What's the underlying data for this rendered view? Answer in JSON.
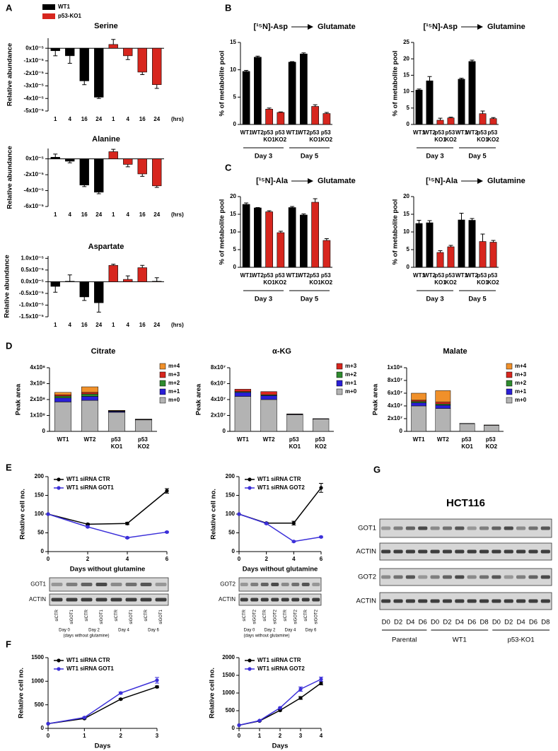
{
  "panel_labels": [
    "A",
    "B",
    "C",
    "D",
    "E",
    "F",
    "G"
  ],
  "chart_data": [
    {
      "type": "bar",
      "title": "Serine",
      "ylabel": "Relative abundance",
      "xlabel": "(hrs)",
      "categories": [
        "1",
        "4",
        "16",
        "24",
        "1",
        "4",
        "16",
        "24"
      ],
      "series": [
        {
          "name": "WT1",
          "color": "#000000",
          "values": [
            -2e-06,
            -6e-06,
            -2.6e-05,
            -3.9e-05,
            null,
            null,
            null,
            null
          ],
          "errors": [
            4e-06,
            6e-06,
            3e-06,
            1e-06,
            null,
            null,
            null,
            null
          ]
        },
        {
          "name": "p53-KO1",
          "color": "#d7261e",
          "values": [
            null,
            null,
            null,
            null,
            3e-06,
            -6e-06,
            -1.9e-05,
            -2.9e-05
          ],
          "errors": [
            null,
            null,
            null,
            null,
            4e-06,
            3e-06,
            2e-06,
            3e-06
          ]
        }
      ],
      "ylim": [
        -5e-05,
        8e-06
      ],
      "yticks": [
        {
          "value": 0,
          "label": "0x10⁻⁵"
        },
        {
          "value": -1e-05,
          "label": "-1x10⁻⁵"
        },
        {
          "value": -2e-05,
          "label": "-2x10⁻⁵"
        },
        {
          "value": -3e-05,
          "label": "-3x10⁻⁵"
        },
        {
          "value": -4e-05,
          "label": "-4x10⁻⁵"
        },
        {
          "value": -5e-05,
          "label": "-5x10⁻⁵"
        }
      ]
    },
    {
      "type": "bar",
      "title": "Alanine",
      "ylabel": "Relative abundance",
      "xlabel": "(hrs)",
      "categories": [
        "1",
        "4",
        "16",
        "24",
        "1",
        "4",
        "16",
        "24"
      ],
      "series": [
        {
          "name": "WT1",
          "color": "#000000",
          "values": [
            2e-06,
            -3e-06,
            -3.3e-05,
            -4.2e-05,
            null,
            null,
            null,
            null
          ],
          "errors": [
            4e-06,
            2e-06,
            2e-06,
            2e-06,
            null,
            null,
            null,
            null
          ]
        },
        {
          "name": "p53-KO1",
          "color": "#d7261e",
          "values": [
            null,
            null,
            null,
            null,
            9e-06,
            -7e-06,
            -1.9e-05,
            -3.4e-05
          ],
          "errors": [
            null,
            null,
            null,
            null,
            3e-06,
            3e-06,
            3e-06,
            2e-06
          ]
        }
      ],
      "ylim": [
        -6e-05,
        1.3e-05
      ],
      "yticks": [
        {
          "value": 0,
          "label": "0x10⁻⁵"
        },
        {
          "value": -2e-05,
          "label": "-2x10⁻⁵"
        },
        {
          "value": -4e-05,
          "label": "-4x10⁻⁵"
        },
        {
          "value": -6e-05,
          "label": "-6x10⁻⁵"
        }
      ]
    },
    {
      "type": "bar",
      "title": "Aspartate",
      "ylabel": "Relative abundance",
      "xlabel": "(hrs)",
      "categories": [
        "1",
        "4",
        "16",
        "24",
        "1",
        "4",
        "16",
        "24"
      ],
      "series": [
        {
          "name": "WT1",
          "color": "#000000",
          "values": [
            -2e-06,
            2e-07,
            -6.5e-06,
            -9e-06,
            null,
            null,
            null,
            null
          ],
          "errors": [
            2.5e-06,
            2.7e-06,
            1.5e-06,
            4e-06,
            null,
            null,
            null,
            null
          ]
        },
        {
          "name": "p53-KO1",
          "color": "#d7261e",
          "values": [
            null,
            null,
            null,
            null,
            7e-06,
            1e-06,
            6e-06,
            2e-07
          ],
          "errors": [
            null,
            null,
            null,
            null,
            5e-07,
            1.5e-06,
            1e-06,
            1.5e-06
          ]
        }
      ],
      "ylim": [
        -1.5e-05,
        1.1e-05
      ],
      "yticks": [
        {
          "value": 1e-05,
          "label": "1.0x10⁻⁵"
        },
        {
          "value": 5e-06,
          "label": "0.5x10⁻⁵"
        },
        {
          "value": 0,
          "label": "0.0x10⁻⁵"
        },
        {
          "value": -5e-06,
          "label": "-0.5x10⁻⁵"
        },
        {
          "value": -1e-05,
          "label": "-1.0x10⁻⁵"
        },
        {
          "value": -1.5e-05,
          "label": "-1.5x10⁻⁵"
        }
      ]
    },
    {
      "type": "bar",
      "title_from": "[¹⁵N]-Asp",
      "title_to": "Glutamate",
      "ylabel": "% of metabolite pool",
      "categories": [
        "WT1",
        "WT2",
        "p53 KO1",
        "p53 KO2",
        "WT1",
        "WT2",
        "p53 KO1",
        "p53 KO2"
      ],
      "groups": [
        "Day 3",
        "Day 5"
      ],
      "values": [
        9.7,
        12.3,
        2.8,
        2.2,
        11.4,
        12.9,
        3.3,
        2.0
      ],
      "errors": [
        0.2,
        0.2,
        0.2,
        0.1,
        0.1,
        0.2,
        0.3,
        0.2
      ],
      "colors": [
        "#000000",
        "#000000",
        "#d7261e",
        "#d7261e",
        "#000000",
        "#000000",
        "#d7261e",
        "#d7261e"
      ],
      "ylim": [
        0,
        15
      ],
      "yticks": [
        0,
        5,
        10,
        15
      ]
    },
    {
      "type": "bar",
      "title_from": "[¹⁵N]-Asp",
      "title_to": "Glutamine",
      "ylabel": "% of metabolite pool",
      "categories": [
        "WT1",
        "WT2",
        "p53 KO1",
        "p53 KO2",
        "WT1",
        "WT2",
        "p53 KO1",
        "p53 KO2"
      ],
      "groups": [
        "Day 3",
        "Day 5"
      ],
      "values": [
        10.5,
        13.3,
        1.3,
        2.0,
        13.8,
        19.2,
        3.3,
        1.8
      ],
      "errors": [
        0.3,
        1.3,
        0.6,
        0.2,
        0.3,
        0.4,
        0.8,
        0.3
      ],
      "colors": [
        "#000000",
        "#000000",
        "#d7261e",
        "#d7261e",
        "#000000",
        "#000000",
        "#d7261e",
        "#d7261e"
      ],
      "ylim": [
        0,
        25
      ],
      "yticks": [
        0,
        5,
        10,
        15,
        20,
        25
      ]
    },
    {
      "type": "bar",
      "title_from": "[¹⁵N]-Ala",
      "title_to": "Glutamate",
      "ylabel": "% of metabolite pool",
      "categories": [
        "WT1",
        "WT2",
        "p53 KO1",
        "p53 KO2",
        "WT1",
        "WT2",
        "p53 KO1",
        "p53 KO2"
      ],
      "groups": [
        "Day 3",
        "Day 5"
      ],
      "values": [
        17.8,
        16.8,
        15.7,
        9.8,
        16.9,
        14.8,
        18.4,
        7.6
      ],
      "errors": [
        0.4,
        0.1,
        0.3,
        0.4,
        0.3,
        0.3,
        1.0,
        0.5
      ],
      "colors": [
        "#000000",
        "#000000",
        "#d7261e",
        "#d7261e",
        "#000000",
        "#000000",
        "#d7261e",
        "#d7261e"
      ],
      "ylim": [
        0,
        20
      ],
      "yticks": [
        0,
        5,
        10,
        15,
        20
      ]
    },
    {
      "type": "bar",
      "title_from": "[¹⁵N]-Ala",
      "title_to": "Glutamine",
      "ylabel": "% of metabolite pool",
      "categories": [
        "WT1",
        "WT2",
        "p53 KO1",
        "p53 KO2",
        "WT1",
        "WT2",
        "p53 KO1",
        "p53 KO2"
      ],
      "groups": [
        "Day 3",
        "Day 5"
      ],
      "values": [
        12.4,
        12.6,
        4.2,
        5.8,
        13.4,
        13.3,
        7.3,
        7.1
      ],
      "errors": [
        0.9,
        0.6,
        0.5,
        0.4,
        1.9,
        0.5,
        2.1,
        0.5
      ],
      "colors": [
        "#000000",
        "#000000",
        "#d7261e",
        "#d7261e",
        "#000000",
        "#000000",
        "#d7261e",
        "#d7261e"
      ],
      "ylim": [
        0,
        20
      ],
      "yticks": [
        0,
        5,
        10,
        15,
        20
      ]
    },
    {
      "type": "stacked_bar",
      "title": "Citrate",
      "ylabel": "Peak area",
      "categories": [
        "WT1",
        "WT2",
        "p53 KO1",
        "p53 KO2"
      ],
      "series": [
        {
          "name": "m+0",
          "color": "#b3b3b3",
          "values": [
            185000000.0,
            195000000.0,
            120000000.0,
            72000000.0
          ]
        },
        {
          "name": "m+1",
          "color": "#2a1fd6",
          "values": [
            25000000.0,
            25000000.0,
            5000000.0,
            2000000.0
          ]
        },
        {
          "name": "m+2",
          "color": "#2e8b2e",
          "values": [
            12000000.0,
            15000000.0,
            2000000.0,
            1000000.0
          ]
        },
        {
          "name": "m+3",
          "color": "#d7261e",
          "values": [
            8000000.0,
            10000000.0,
            2000000.0,
            1000000.0
          ]
        },
        {
          "name": "m+4",
          "color": "#f0902a",
          "values": [
            15000000.0,
            35000000.0,
            3000000.0,
            1000000.0
          ]
        }
      ],
      "ylim": [
        0,
        400000000.0
      ],
      "yticks": [
        0,
        {
          "value": 100000000.0,
          "label": "1x10⁸"
        },
        {
          "value": 200000000.0,
          "label": "2x10⁸"
        },
        {
          "value": 300000000.0,
          "label": "3x10⁸"
        },
        {
          "value": 400000000.0,
          "label": "4x10⁸"
        }
      ]
    },
    {
      "type": "stacked_bar",
      "title": "α-KG",
      "ylabel": "Peak area",
      "categories": [
        "WT1",
        "WT2",
        "p53 KO1",
        "p53 KO2"
      ],
      "series": [
        {
          "name": "m+0",
          "color": "#b3b3b3",
          "values": [
            44000000.0,
            40000000.0,
            21000000.0,
            15500000.0
          ]
        },
        {
          "name": "m+1",
          "color": "#2a1fd6",
          "values": [
            5000000.0,
            5000000.0,
            500000.0,
            200000.0
          ]
        },
        {
          "name": "m+2",
          "color": "#2e8b2e",
          "values": [
            1000000.0,
            1000000.0,
            200000.0,
            100000.0
          ]
        },
        {
          "name": "m+3",
          "color": "#d7261e",
          "values": [
            3000000.0,
            4000000.0,
            300000.0,
            200000.0
          ]
        }
      ],
      "ylim": [
        0,
        80000000.0
      ],
      "yticks": [
        0,
        {
          "value": 20000000.0,
          "label": "2x10⁷"
        },
        {
          "value": 40000000.0,
          "label": "4x10⁷"
        },
        {
          "value": 60000000.0,
          "label": "6x10⁷"
        },
        {
          "value": 80000000.0,
          "label": "8x10⁷"
        }
      ]
    },
    {
      "type": "stacked_bar",
      "title": "Malate",
      "ylabel": "Peak area",
      "categories": [
        "WT1",
        "WT2",
        "p53 KO1",
        "p53 KO2"
      ],
      "series": [
        {
          "name": "m+0",
          "color": "#b3b3b3",
          "values": [
            40000000.0,
            36000000.0,
            12000000.0,
            9500000.0
          ]
        },
        {
          "name": "m+1",
          "color": "#2a1fd6",
          "values": [
            5000000.0,
            5000000.0,
            300000.0,
            200000.0
          ]
        },
        {
          "name": "m+2",
          "color": "#2e8b2e",
          "values": [
            2000000.0,
            2000000.0,
            100000.0,
            100000.0
          ]
        },
        {
          "name": "m+3",
          "color": "#d7261e",
          "values": [
            2000000.0,
            3000000.0,
            100000.0,
            100000.0
          ]
        },
        {
          "name": "m+4",
          "color": "#f0902a",
          "values": [
            11000000.0,
            18000000.0,
            100000.0,
            100000.0
          ]
        }
      ],
      "ylim": [
        0,
        100000000.0
      ],
      "yticks": [
        0,
        {
          "value": 20000000.0,
          "label": "2x10⁷"
        },
        {
          "value": 40000000.0,
          "label": "4x10⁷"
        },
        {
          "value": 60000000.0,
          "label": "6x10⁷"
        },
        {
          "value": 80000000.0,
          "label": "8x10⁷"
        },
        {
          "value": 100000000.0,
          "label": "1x10⁸"
        }
      ]
    },
    {
      "type": "line",
      "ylabel": "Relative cell no.",
      "xlabel": "Days without glutamine",
      "x": [
        0,
        2,
        4,
        6
      ],
      "series": [
        {
          "name": "WT1 siRNA CTR",
          "color": "#000000",
          "values": [
            100,
            73,
            75,
            162
          ],
          "errors": [
            0,
            2,
            3,
            6
          ]
        },
        {
          "name": "WT1 siRNA GOT1",
          "color": "#3b2fd9",
          "values": [
            100,
            66,
            37,
            52
          ],
          "errors": [
            0,
            2,
            2,
            2
          ]
        }
      ],
      "xlim": [
        0,
        6
      ],
      "xticks": [
        0,
        2,
        4,
        6
      ],
      "ylim": [
        0,
        200
      ],
      "yticks": [
        0,
        50,
        100,
        150,
        200
      ]
    },
    {
      "type": "line",
      "ylabel": "Relative cell no.",
      "xlabel": "Days without glutamine",
      "x": [
        0,
        2,
        4,
        6
      ],
      "series": [
        {
          "name": "WT1 siRNA CTR",
          "color": "#000000",
          "values": [
            100,
            76,
            76,
            170
          ],
          "errors": [
            0,
            2,
            5,
            12
          ]
        },
        {
          "name": "WT1 siRNA GOT2",
          "color": "#3b2fd9",
          "values": [
            100,
            75,
            27,
            39
          ],
          "errors": [
            0,
            2,
            2,
            2
          ]
        }
      ],
      "xlim": [
        0,
        6
      ],
      "xticks": [
        0,
        2,
        4,
        6
      ],
      "ylim": [
        0,
        200
      ],
      "yticks": [
        0,
        50,
        100,
        150,
        200
      ]
    },
    {
      "type": "line",
      "ylabel": "Relative cell no.",
      "xlabel": "Days",
      "x": [
        0,
        1,
        2,
        3
      ],
      "series": [
        {
          "name": "WT1 siRNA CTR",
          "color": "#000000",
          "values": [
            100,
            210,
            620,
            880
          ],
          "errors": [
            0,
            10,
            15,
            20
          ]
        },
        {
          "name": "WT1 siRNA GOT1",
          "color": "#3b2fd9",
          "values": [
            100,
            230,
            750,
            1020
          ],
          "errors": [
            0,
            10,
            20,
            60
          ]
        }
      ],
      "xlim": [
        0,
        3
      ],
      "xticks": [
        0,
        1,
        2,
        3
      ],
      "ylim": [
        0,
        1500
      ],
      "yticks": [
        0,
        500,
        1000,
        1500
      ]
    },
    {
      "type": "line",
      "ylabel": "Relative cell no.",
      "xlabel": "Days",
      "x": [
        0,
        1,
        2,
        3,
        4
      ],
      "series": [
        {
          "name": "WT1 siRNA CTR",
          "color": "#000000",
          "values": [
            90,
            210,
            510,
            860,
            1280
          ],
          "errors": [
            0,
            10,
            20,
            40,
            50
          ]
        },
        {
          "name": "WT1 siRNA GOT2",
          "color": "#3b2fd9",
          "values": [
            90,
            220,
            580,
            1110,
            1390
          ],
          "errors": [
            0,
            10,
            20,
            60,
            60
          ]
        }
      ],
      "xlim": [
        0,
        4
      ],
      "xticks": [
        0,
        1,
        2,
        3,
        4
      ],
      "ylim": [
        0,
        2000
      ],
      "yticks": [
        0,
        500,
        1000,
        1500,
        2000
      ]
    }
  ],
  "blots": [
    {
      "rows": [
        "GOT1",
        "ACTIN"
      ],
      "lanes": [
        "siCTR",
        "siGOT1",
        "siCTR",
        "siGOT1",
        "siCTR",
        "siGOT1",
        "siCTR",
        "siGOT1"
      ],
      "groups": [
        "Day 0",
        "Day 2",
        "Day 4",
        "Day 6"
      ],
      "note": "(days without glutamine)"
    },
    {
      "rows": [
        "GOT2",
        "ACTIN"
      ],
      "lanes": [
        "siCTR",
        "siGOT2",
        "siCTR",
        "siGOT2",
        "siCTR",
        "siGOT2",
        "siCTR",
        "siGOT2"
      ],
      "groups": [
        "Day 0",
        "Day 2",
        "Day 4",
        "Day 6"
      ],
      "note": "(days without glutamine)"
    },
    {
      "title": "HCT116",
      "rows": [
        "GOT1",
        "ACTIN",
        "GOT2",
        "ACTIN"
      ],
      "lanes": [
        "D0",
        "D2",
        "D4",
        "D6",
        "D0",
        "D2",
        "D4",
        "D6",
        "D8",
        "D0",
        "D2",
        "D4",
        "D6",
        "D8"
      ],
      "groups": [
        "Parental",
        "WT1",
        "p53-KO1"
      ]
    }
  ]
}
